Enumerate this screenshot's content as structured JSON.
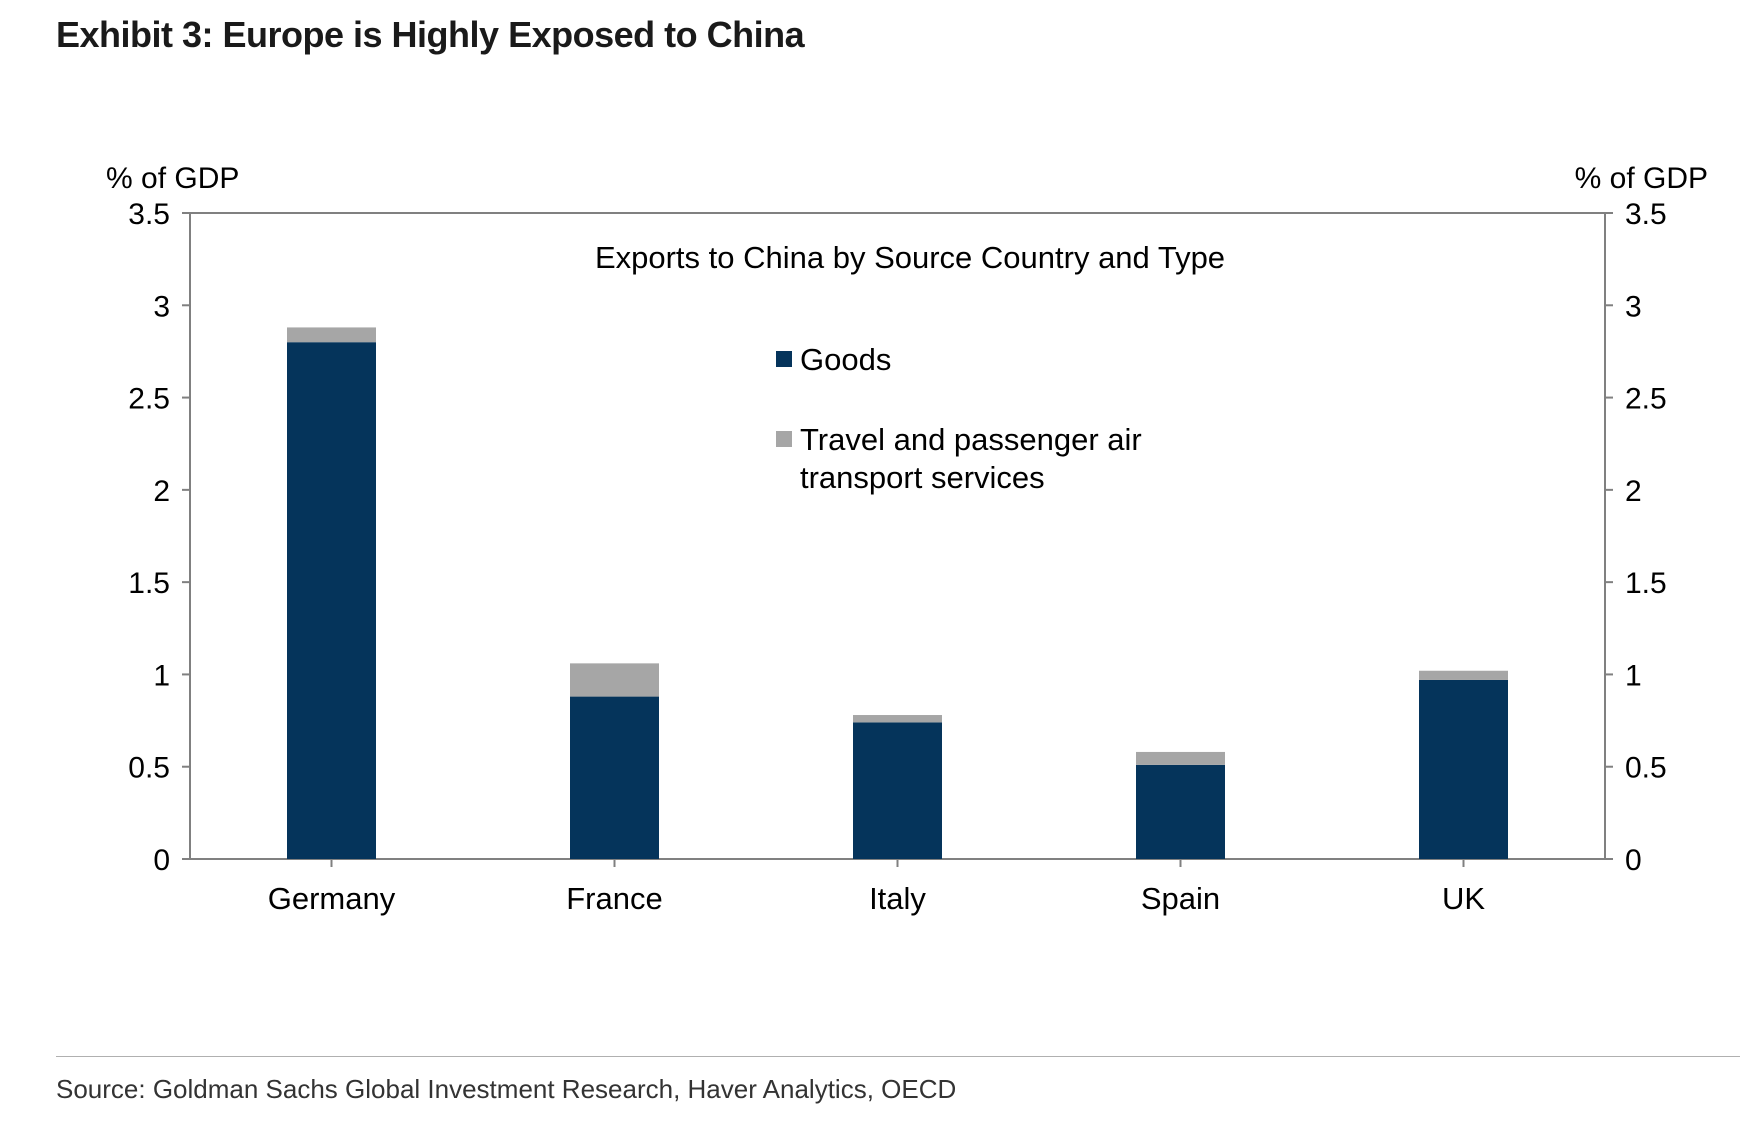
{
  "exhibit_title": "Exhibit 3: Europe is Highly Exposed to China",
  "source": "Source: Goldman Sachs Global Investment Research, Haver Analytics, OECD",
  "colors": {
    "goods": "#05345B",
    "travel": "#A6A6A6",
    "axis": "#808080"
  },
  "chart_data": {
    "type": "bar",
    "stacked": true,
    "title": "Exports to China by Source Country and Type",
    "ylabel_left": "% of GDP",
    "ylabel_right": "% of GDP",
    "ylim": [
      0,
      3.5
    ],
    "yticks": [
      "0",
      "0.5",
      "1",
      "1.5",
      "2",
      "2.5",
      "3",
      "3.5"
    ],
    "categories": [
      "Germany",
      "France",
      "Italy",
      "Spain",
      "UK"
    ],
    "series": [
      {
        "name": "Goods",
        "values": [
          2.8,
          0.88,
          0.74,
          0.51,
          0.97
        ]
      },
      {
        "name": "Travel and passenger air transport services",
        "values": [
          0.08,
          0.18,
          0.04,
          0.07,
          0.05
        ]
      }
    ],
    "legend": {
      "position": "top-center",
      "goods_label": "Goods",
      "travel_label_line1": "Travel and passenger air",
      "travel_label_line2": "transport services"
    }
  }
}
